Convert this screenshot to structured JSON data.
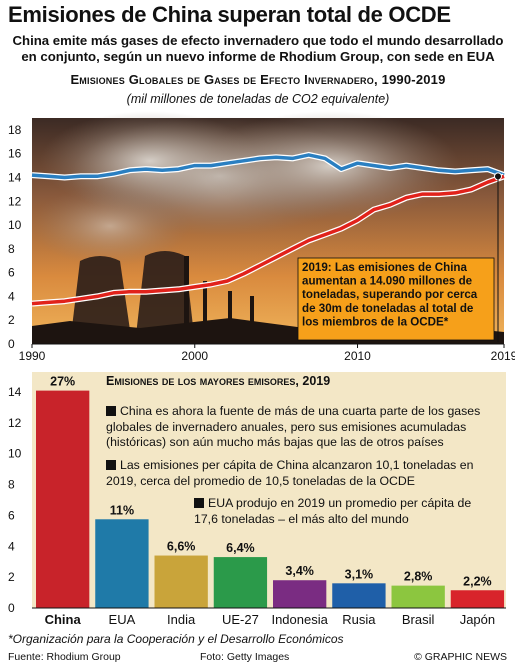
{
  "title": "Emisiones de China superan total de OCDE",
  "subtitle": "China emite más gases de efecto invernadero que todo el mundo desarrollado en conjunto, según un nuevo informe de Rhodium Group, con sede en EUA",
  "footnote": "*Organización para la Cooperación y el Desarrollo Económicos",
  "source": "Fuente: Rhodium Group",
  "photo_credit": "Foto: Getty Images",
  "brand": "© GRAPHIC NEWS",
  "watermark": "GRAPHIC NEWS",
  "colors": {
    "china_line": "#e1221b",
    "oecd_line": "#2a7fc1",
    "bar_china": "#c8232a",
    "bar_usa": "#1f7aa8",
    "bar_india": "#c9a43a",
    "bar_eu": "#2b9a4a",
    "bar_indonesia": "#7a2c82",
    "bar_russia": "#1f5fa8",
    "bar_brazil": "#8cc63f",
    "bar_japan": "#d8242b",
    "annotation_bg": "#f6a01a",
    "bar_panel_bg": "#f3e7c6"
  },
  "chart_data": [
    {
      "type": "line",
      "title": "Emisiones Globales de Gases de Efecto Invernadero, 1990-2019",
      "subtitle": "(mil millones de toneladas de CO2 equivalente)",
      "xlim": [
        1990,
        2019
      ],
      "ylim": [
        0,
        19
      ],
      "x_ticks": [
        1990,
        2000,
        2010,
        2019
      ],
      "y_ticks": [
        0,
        2,
        4,
        6,
        8,
        10,
        12,
        14,
        16,
        18
      ],
      "grid": false,
      "x": [
        1990,
        1991,
        1992,
        1993,
        1994,
        1995,
        1996,
        1997,
        1998,
        1999,
        2000,
        2001,
        2002,
        2003,
        2004,
        2005,
        2006,
        2007,
        2008,
        2009,
        2010,
        2011,
        2012,
        2013,
        2014,
        2015,
        2016,
        2017,
        2018,
        2019
      ],
      "series": [
        {
          "values": [
            14.2,
            14.1,
            14.0,
            14.1,
            14.1,
            14.3,
            14.6,
            14.7,
            14.6,
            14.7,
            15.0,
            15.0,
            15.2,
            15.4,
            15.6,
            15.7,
            15.6,
            15.9,
            15.6,
            14.7,
            15.2,
            15.0,
            14.8,
            15.0,
            14.8,
            14.6,
            14.5,
            14.6,
            14.7,
            14.2
          ]
        },
        {
          "values": [
            3.4,
            3.5,
            3.6,
            3.8,
            4.0,
            4.3,
            4.4,
            4.4,
            4.5,
            4.6,
            4.8,
            5.0,
            5.3,
            5.9,
            6.6,
            7.3,
            8.0,
            8.7,
            9.2,
            9.7,
            10.4,
            11.3,
            11.7,
            12.3,
            12.6,
            12.6,
            12.7,
            13.0,
            13.6,
            14.09
          ]
        }
      ],
      "annotation": "2019: Las emisiones de China aumentan a 14.090 millones de toneladas, superando por cerca de 30m de toneladas al total de los miembros de la OCDE*"
    },
    {
      "type": "bar",
      "title": "Emisiones de los mayores emisores, 2019",
      "categories": [
        "China",
        "EUA",
        "India",
        "UE-27",
        "Indonesia",
        "Rusia",
        "Brasil",
        "Japón"
      ],
      "values": [
        14.09,
        5.75,
        3.4,
        3.3,
        1.8,
        1.6,
        1.45,
        1.15
      ],
      "data_labels": [
        "27%",
        "11%",
        "6,6%",
        "6,4%",
        "3,4%",
        "3,1%",
        "2,8%",
        "2,2%"
      ],
      "ylim": [
        0,
        14
      ],
      "y_ticks": [
        0,
        2,
        4,
        6,
        8,
        10,
        12,
        14
      ],
      "grid": false,
      "notes": [
        "China es ahora la fuente de más de una cuarta parte de los gases globales de invernadero anuales, pero sus emisiones acumuladas (históricas) son aún mucho más bajas que las de otros países",
        "Las emisiones per cápita de China alcanzaron 10,1 toneladas en 2019, cerca del promedio de 10,5 toneladas de la OCDE",
        "EUA produjo en 2019 un promedio per cápita de 17,6 toneladas – el más alto del mundo"
      ]
    }
  ]
}
